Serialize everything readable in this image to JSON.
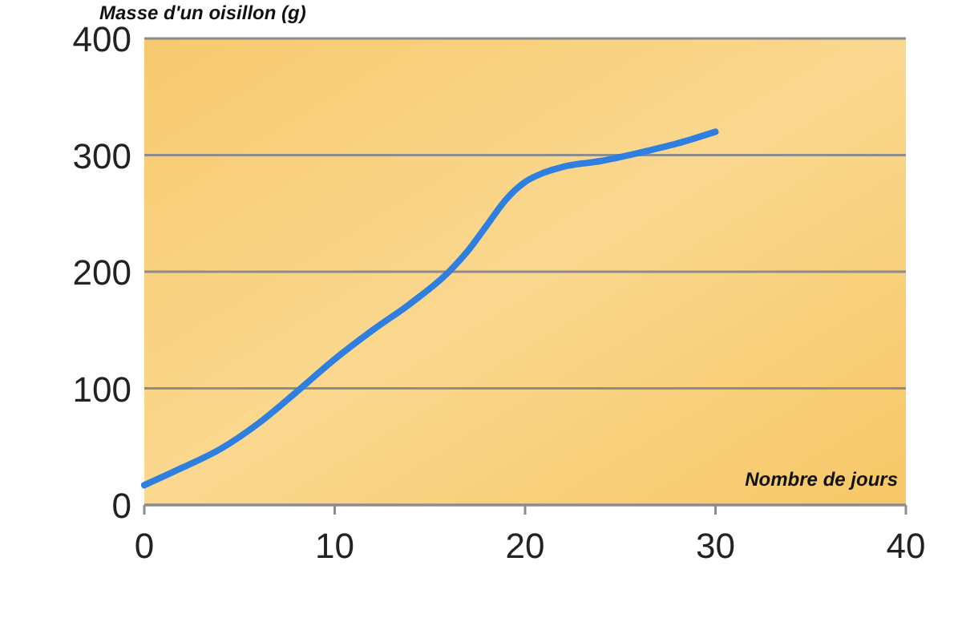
{
  "chart_data": {
    "type": "line",
    "xlabel": "Nombre de jours",
    "ylabel": "Masse d'un oisillon (g)",
    "x": [
      0,
      2,
      4,
      6,
      8,
      10,
      12,
      14,
      16,
      17,
      18,
      19,
      20,
      21,
      22,
      24,
      26,
      28,
      30
    ],
    "series": [
      {
        "color": "#2f7fe0",
        "values": [
          17,
          32,
          48,
          70,
          97,
          125,
          150,
          173,
          200,
          218,
          240,
          262,
          277,
          285,
          290,
          295,
          302,
          310,
          320
        ]
      }
    ],
    "xlim": [
      0,
      40
    ],
    "xticks": [
      0,
      10,
      20,
      30,
      40
    ],
    "ylim": [
      0,
      400
    ],
    "yticks": [
      0,
      100,
      200,
      300,
      400
    ],
    "grid": "y",
    "marker": "none",
    "line_style": "solid"
  }
}
